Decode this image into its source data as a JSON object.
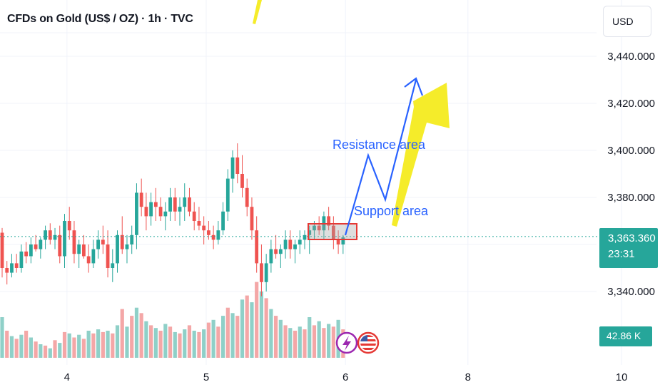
{
  "header": {
    "title": "CFDs on Gold (US$ / OZ) · 1h · TVC",
    "currency": "USD"
  },
  "last_price": {
    "value": "3,363.360",
    "countdown": "23:31"
  },
  "volume_label": "42.86 K",
  "annotations": {
    "resistance": "Resistance area",
    "support": "Support area"
  },
  "icons": {
    "event1": "lightning-icon",
    "event2": "us-flag-icon"
  },
  "colors": {
    "up": "#26a69a",
    "down": "#ef5350",
    "vol_up": "#8fd0c8",
    "vol_down": "#f4a7a7",
    "arrow_blue": "#2962ff",
    "arrow_yellow": "#f5ec2a",
    "grid": "#f0f3fa"
  },
  "chart_data": {
    "type": "candlestick",
    "title": "CFDs on Gold (US$ / OZ) · 1h · TVC",
    "ylim": [
      3322,
      3452
    ],
    "y_ticks": [
      3440,
      3420,
      3400,
      3380,
      3340
    ],
    "y_tick_labels": [
      "3,440.000",
      "3,420.000",
      "3,400.000",
      "3,380.000",
      "3,340.000"
    ],
    "x_ticks": [
      "4",
      "5",
      "6",
      "8",
      "10"
    ],
    "x_tick_index": [
      13.5,
      42.5,
      71.5,
      97,
      129
    ],
    "last_price": 3363.36,
    "candles": [
      [
        3365,
        3367,
        3346,
        3350
      ],
      [
        3350,
        3353,
        3343,
        3348
      ],
      [
        3348,
        3356,
        3346,
        3352
      ],
      [
        3352,
        3356,
        3348,
        3350
      ],
      [
        3350,
        3360,
        3348,
        3357
      ],
      [
        3357,
        3361,
        3352,
        3355
      ],
      [
        3355,
        3363,
        3352,
        3360
      ],
      [
        3360,
        3364,
        3357,
        3358
      ],
      [
        3358,
        3363,
        3354,
        3362
      ],
      [
        3362,
        3368,
        3358,
        3366
      ],
      [
        3366,
        3369,
        3360,
        3362
      ],
      [
        3362,
        3367,
        3358,
        3364
      ],
      [
        3364,
        3368,
        3352,
        3355
      ],
      [
        3355,
        3373,
        3350,
        3370
      ],
      [
        3370,
        3376,
        3362,
        3366
      ],
      [
        3366,
        3370,
        3352,
        3356
      ],
      [
        3356,
        3362,
        3350,
        3360
      ],
      [
        3360,
        3364,
        3354,
        3355
      ],
      [
        3355,
        3360,
        3348,
        3352
      ],
      [
        3352,
        3362,
        3350,
        3358
      ],
      [
        3358,
        3366,
        3354,
        3362
      ],
      [
        3362,
        3368,
        3356,
        3360
      ],
      [
        3360,
        3366,
        3346,
        3350
      ],
      [
        3350,
        3358,
        3344,
        3352
      ],
      [
        3352,
        3366,
        3348,
        3364
      ],
      [
        3364,
        3372,
        3356,
        3358
      ],
      [
        3358,
        3364,
        3352,
        3360
      ],
      [
        3360,
        3368,
        3356,
        3364
      ],
      [
        3364,
        3386,
        3358,
        3382
      ],
      [
        3382,
        3388,
        3372,
        3376
      ],
      [
        3376,
        3382,
        3366,
        3372
      ],
      [
        3372,
        3382,
        3368,
        3378
      ],
      [
        3378,
        3384,
        3370,
        3376
      ],
      [
        3376,
        3380,
        3370,
        3372
      ],
      [
        3372,
        3378,
        3366,
        3374
      ],
      [
        3374,
        3384,
        3370,
        3380
      ],
      [
        3380,
        3384,
        3370,
        3374
      ],
      [
        3374,
        3380,
        3368,
        3376
      ],
      [
        3376,
        3386,
        3370,
        3380
      ],
      [
        3380,
        3384,
        3372,
        3374
      ],
      [
        3374,
        3378,
        3366,
        3370
      ],
      [
        3370,
        3376,
        3366,
        3368
      ],
      [
        3368,
        3372,
        3360,
        3366
      ],
      [
        3366,
        3370,
        3362,
        3364
      ],
      [
        3364,
        3368,
        3358,
        3362
      ],
      [
        3362,
        3370,
        3360,
        3366
      ],
      [
        3366,
        3378,
        3364,
        3374
      ],
      [
        3374,
        3392,
        3370,
        3388
      ],
      [
        3388,
        3400,
        3382,
        3397
      ],
      [
        3397,
        3403,
        3386,
        3390
      ],
      [
        3390,
        3398,
        3380,
        3384
      ],
      [
        3384,
        3388,
        3372,
        3376
      ],
      [
        3376,
        3380,
        3362,
        3366
      ],
      [
        3366,
        3372,
        3348,
        3352
      ],
      [
        3352,
        3360,
        3338,
        3344
      ],
      [
        3344,
        3356,
        3340,
        3352
      ],
      [
        3352,
        3362,
        3348,
        3358
      ],
      [
        3358,
        3364,
        3354,
        3356
      ],
      [
        3356,
        3360,
        3350,
        3358
      ],
      [
        3358,
        3366,
        3354,
        3362
      ],
      [
        3362,
        3366,
        3354,
        3358
      ],
      [
        3358,
        3362,
        3352,
        3360
      ],
      [
        3360,
        3366,
        3356,
        3362
      ],
      [
        3362,
        3366,
        3358,
        3364
      ],
      [
        3364,
        3368,
        3356,
        3366
      ],
      [
        3366,
        3370,
        3362,
        3368
      ],
      [
        3368,
        3372,
        3364,
        3366
      ],
      [
        3366,
        3374,
        3362,
        3372
      ],
      [
        3372,
        3376,
        3366,
        3368
      ],
      [
        3368,
        3372,
        3358,
        3362
      ],
      [
        3362,
        3366,
        3356,
        3360
      ],
      [
        3360,
        3364,
        3356,
        3363
      ]
    ],
    "volume": [
      [
        0,
        60
      ],
      [
        1,
        40
      ],
      [
        0,
        32
      ],
      [
        1,
        28
      ],
      [
        0,
        34
      ],
      [
        1,
        40
      ],
      [
        0,
        30
      ],
      [
        1,
        24
      ],
      [
        0,
        20
      ],
      [
        1,
        18
      ],
      [
        0,
        14
      ],
      [
        1,
        26
      ],
      [
        0,
        22
      ],
      [
        1,
        38
      ],
      [
        0,
        36
      ],
      [
        1,
        30
      ],
      [
        0,
        34
      ],
      [
        1,
        28
      ],
      [
        0,
        40
      ],
      [
        1,
        36
      ],
      [
        0,
        42
      ],
      [
        1,
        38
      ],
      [
        0,
        40
      ],
      [
        1,
        36
      ],
      [
        0,
        48
      ],
      [
        1,
        72
      ],
      [
        0,
        46
      ],
      [
        1,
        62
      ],
      [
        0,
        74
      ],
      [
        1,
        66
      ],
      [
        0,
        54
      ],
      [
        1,
        48
      ],
      [
        0,
        44
      ],
      [
        1,
        40
      ],
      [
        0,
        50
      ],
      [
        1,
        46
      ],
      [
        0,
        38
      ],
      [
        1,
        36
      ],
      [
        0,
        42
      ],
      [
        1,
        48
      ],
      [
        0,
        40
      ],
      [
        1,
        38
      ],
      [
        0,
        42
      ],
      [
        1,
        52
      ],
      [
        0,
        56
      ],
      [
        1,
        46
      ],
      [
        0,
        62
      ],
      [
        1,
        74
      ],
      [
        0,
        66
      ],
      [
        1,
        62
      ],
      [
        0,
        86
      ],
      [
        1,
        92
      ],
      [
        0,
        82
      ],
      [
        1,
        112
      ],
      [
        0,
        98
      ],
      [
        1,
        88
      ],
      [
        0,
        72
      ],
      [
        1,
        62
      ],
      [
        0,
        56
      ],
      [
        1,
        48
      ],
      [
        0,
        44
      ],
      [
        1,
        40
      ],
      [
        0,
        46
      ],
      [
        1,
        42
      ],
      [
        0,
        60
      ],
      [
        1,
        48
      ],
      [
        0,
        54
      ],
      [
        1,
        44
      ],
      [
        0,
        50
      ],
      [
        1,
        46
      ],
      [
        0,
        56
      ],
      [
        1,
        42
      ]
    ]
  }
}
